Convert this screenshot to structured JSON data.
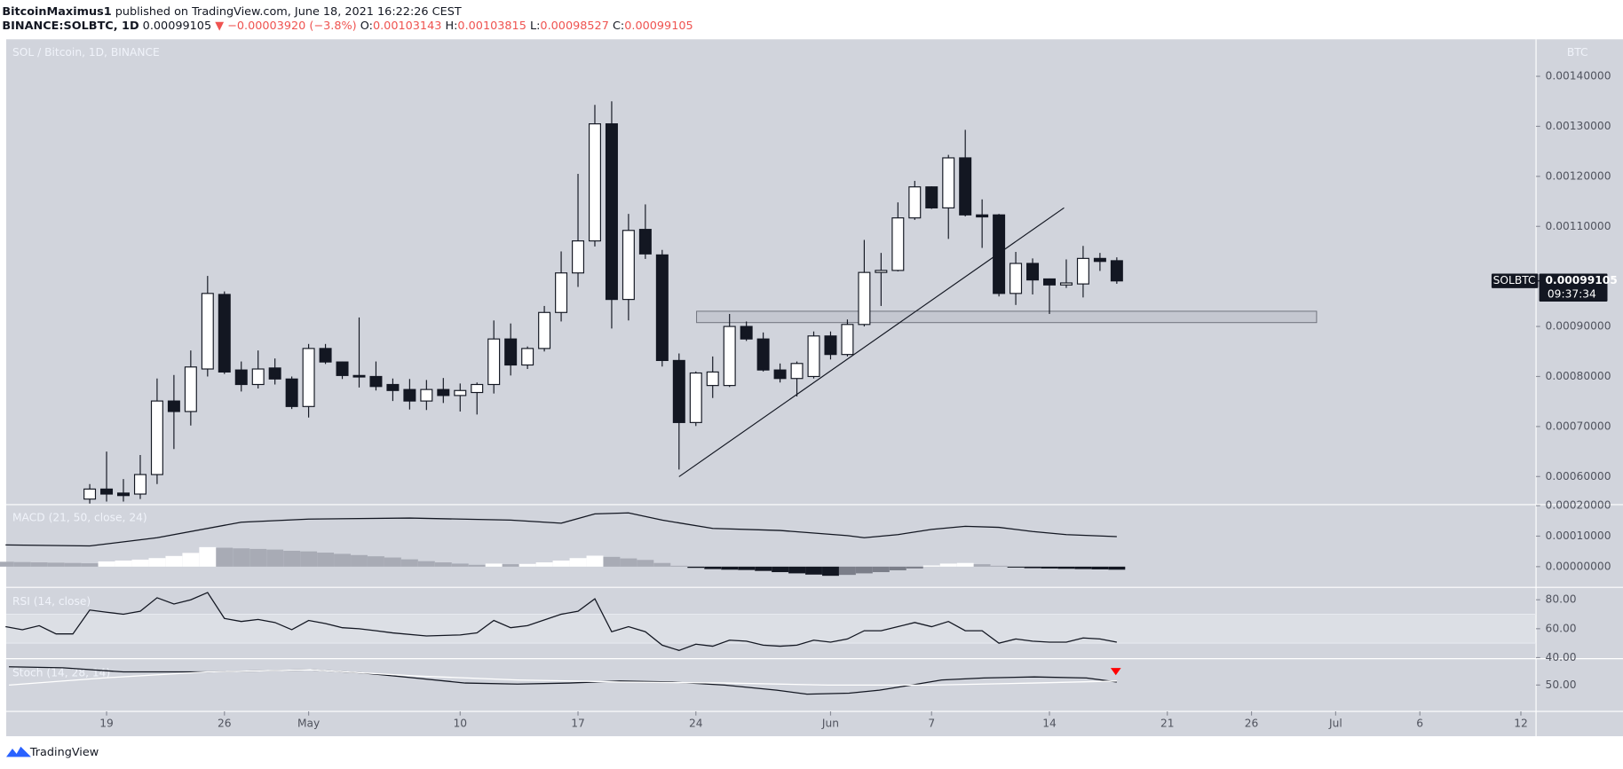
{
  "header": {
    "author": "BitcoinMaximus1",
    "published": "published on TradingView.com, June 18, 2021 16:22:26 CEST",
    "symbol": "BINANCE:SOLBTC, 1D",
    "last": "0.00099105",
    "change": "▼ −0.00003920 (−3.8%)",
    "ohlc": [
      {
        "label": "O:",
        "value": "0.00103143"
      },
      {
        "label": "H:",
        "value": "0.00103815"
      },
      {
        "label": "L:",
        "value": "0.00098527"
      },
      {
        "label": "C:",
        "value": "0.00099105"
      }
    ]
  },
  "price_tag": {
    "symbol": "SOLBTC",
    "price": "0.00099105",
    "countdown": "09:37:34"
  },
  "footer": {
    "brand": "TradingView"
  },
  "chart_data": [
    {
      "type": "candlestick",
      "title": "SOL / Bitcoin, 1D, BINANCE",
      "axis_label": "BTC",
      "up_color": "#ffffff",
      "down_color": "#131722",
      "xlim": [
        -5.96,
        84.9
      ],
      "xticks": [
        {
          "value": 0,
          "label": "19"
        },
        {
          "value": 7,
          "label": "26"
        },
        {
          "value": 12,
          "label": "May"
        },
        {
          "value": 21,
          "label": "10"
        },
        {
          "value": 28,
          "label": "17"
        },
        {
          "value": 35,
          "label": "24"
        },
        {
          "value": 43,
          "label": "Jun"
        },
        {
          "value": 49,
          "label": "7"
        },
        {
          "value": 56,
          "label": "14"
        },
        {
          "value": 63,
          "label": "21"
        },
        {
          "value": 68,
          "label": "26"
        },
        {
          "value": 73,
          "label": "Jul"
        },
        {
          "value": 78,
          "label": "6"
        },
        {
          "value": 84,
          "label": "12"
        }
      ],
      "ylim": [
        0.000546,
        0.001474
      ],
      "yticks": [
        {
          "value": 0.0006,
          "label": "0.00060000"
        },
        {
          "value": 0.0007,
          "label": "0.00070000"
        },
        {
          "value": 0.0008,
          "label": "0.00080000"
        },
        {
          "value": 0.0009,
          "label": "0.00090000"
        },
        {
          "value": 0.0011,
          "label": "0.00110000"
        },
        {
          "value": 0.0012,
          "label": "0.00120000"
        },
        {
          "value": 0.0013,
          "label": "0.00130000"
        },
        {
          "value": 0.0014,
          "label": "0.00140000"
        }
      ],
      "x": [
        -1,
        0,
        1,
        2,
        3,
        4,
        5,
        6,
        7,
        8,
        9,
        10,
        11,
        12,
        13,
        14,
        15,
        16,
        17,
        18,
        19,
        20,
        21,
        22,
        23,
        24,
        25,
        26,
        27,
        28,
        29,
        30,
        31,
        32,
        33,
        34,
        35,
        36,
        37,
        38,
        39,
        40,
        41,
        42,
        43,
        44,
        45,
        46,
        47,
        48,
        49,
        50,
        51,
        52,
        53,
        54,
        55,
        56,
        57,
        58,
        59,
        60
      ],
      "open": [
        0.000555,
        0.000575,
        0.000567,
        0.000565,
        0.000604,
        0.000751,
        0.00073,
        0.000815,
        0.000964,
        0.000813,
        0.000784,
        0.000817,
        0.000795,
        0.00074,
        0.000856,
        0.000829,
        0.000802,
        0.0008,
        0.000784,
        0.000774,
        0.000751,
        0.000774,
        0.000762,
        0.000768,
        0.000784,
        0.000875,
        0.000823,
        0.000856,
        0.000928,
        0.001007,
        0.001071,
        0.001305,
        0.000954,
        0.001094,
        0.001043,
        0.000832,
        0.000708,
        0.000782,
        0.000782,
        0.0009,
        0.000875,
        0.000813,
        0.000796,
        0.0008,
        0.000881,
        0.000844,
        0.000904,
        0.001008,
        0.001012,
        0.001117,
        0.001179,
        0.001137,
        0.001237,
        0.001123,
        0.001123,
        0.000966,
        0.001026,
        0.000995,
        0.000983,
        0.000985,
        0.001036,
        0.00103143
      ],
      "high": [
        0.000585,
        0.00065,
        0.000595,
        0.000643,
        0.000796,
        0.000803,
        0.000852,
        0.001001,
        0.00097,
        0.00083,
        0.000852,
        0.000836,
        0.0008,
        0.000865,
        0.000865,
        0.00083,
        0.000918,
        0.00083,
        0.000796,
        0.000795,
        0.000793,
        0.000797,
        0.000786,
        0.000788,
        0.000912,
        0.000906,
        0.00086,
        0.000941,
        0.00105,
        0.001205,
        0.001343,
        0.00135,
        0.001125,
        0.001144,
        0.001053,
        0.000846,
        0.00081,
        0.00084,
        0.000925,
        0.00091,
        0.000888,
        0.000826,
        0.00083,
        0.00089,
        0.00089,
        0.000914,
        0.001073,
        0.001047,
        0.001148,
        0.001191,
        0.00118,
        0.001243,
        0.001293,
        0.001154,
        0.001125,
        0.001049,
        0.001036,
        0.000996,
        0.001034,
        0.001061,
        0.001047,
        0.00103815
      ],
      "low": [
        0.00054,
        0.00055,
        0.00055,
        0.000555,
        0.000585,
        0.000655,
        0.000702,
        0.0008,
        0.000805,
        0.00077,
        0.000776,
        0.000784,
        0.000735,
        0.000718,
        0.000825,
        0.000795,
        0.000778,
        0.000772,
        0.000751,
        0.000734,
        0.000733,
        0.000747,
        0.00073,
        0.000724,
        0.000766,
        0.000802,
        0.000815,
        0.00085,
        0.00091,
        0.000979,
        0.00106,
        0.000896,
        0.000912,
        0.001035,
        0.00082,
        0.000614,
        0.000701,
        0.000757,
        0.000779,
        0.000871,
        0.00081,
        0.000788,
        0.00076,
        0.000796,
        0.000834,
        0.00084,
        0.0009,
        0.000941,
        0.00101,
        0.001113,
        0.001135,
        0.001075,
        0.00112,
        0.001057,
        0.00096,
        0.000943,
        0.000964,
        0.000925,
        0.000977,
        0.000958,
        0.001011,
        0.00098527
      ],
      "close": [
        0.000575,
        0.000565,
        0.000562,
        0.000604,
        0.000751,
        0.00073,
        0.000819,
        0.000966,
        0.000809,
        0.000784,
        0.000815,
        0.000795,
        0.00074,
        0.000856,
        0.000829,
        0.000802,
        0.000799,
        0.00078,
        0.000772,
        0.000751,
        0.000774,
        0.000762,
        0.000772,
        0.000784,
        0.000875,
        0.000823,
        0.000856,
        0.000928,
        0.001007,
        0.001071,
        0.001305,
        0.000954,
        0.001092,
        0.001045,
        0.000832,
        0.000708,
        0.000807,
        0.000809,
        0.0009,
        0.000875,
        0.000813,
        0.000796,
        0.000826,
        0.000881,
        0.000844,
        0.000904,
        0.001008,
        0.001012,
        0.001117,
        0.001179,
        0.001137,
        0.001237,
        0.001123,
        0.001119,
        0.000966,
        0.001026,
        0.000993,
        0.000983,
        0.000987,
        0.001036,
        0.00103,
        0.00099105
      ]
    },
    {
      "type": "macd",
      "title": "MACD (21, 50, close, 24)",
      "ylim": [
        -6.44e-05,
        0.0002
      ],
      "yticks": [
        {
          "value": 0,
          "label": "0.00000000"
        },
        {
          "value": 0.0001,
          "label": "0.00010000"
        },
        {
          "value": 0.0002,
          "label": "0.00020000"
        }
      ],
      "line": {
        "color": "#131722",
        "x": [
          -6,
          -1,
          3,
          8,
          12,
          18,
          24,
          27,
          29,
          31,
          33,
          36,
          40,
          44,
          45,
          47,
          49,
          51,
          53,
          55,
          57,
          60
        ],
        "values": [
          7.12e-05,
          6.78e-05,
          9.49e-05,
          0.0001458,
          0.0001559,
          0.0001593,
          0.0001525,
          0.0001424,
          0.0001729,
          0.0001763,
          0.0001525,
          0.0001254,
          0.0001186,
          0.0001017,
          9.49e-05,
          0.0001051,
          0.000122,
          0.0001322,
          0.0001288,
          0.0001153,
          0.0001051,
          9.83e-05
        ]
      },
      "histogram": {
        "colors": {
          "rising_positive": "#ffffff",
          "falling_positive": "#a8abb5",
          "rising_negative": "#7b7e89",
          "falling_negative": "#131722"
        },
        "x": [
          -6,
          -5,
          -4,
          -3,
          -2,
          -1,
          0,
          1,
          2,
          3,
          4,
          5,
          6,
          7,
          8,
          9,
          10,
          11,
          12,
          13,
          14,
          15,
          16,
          17,
          18,
          19,
          20,
          21,
          22,
          23,
          24,
          25,
          26,
          27,
          28,
          29,
          30,
          31,
          32,
          33,
          34,
          35,
          36,
          37,
          38,
          39,
          40,
          41,
          42,
          43,
          44,
          45,
          46,
          47,
          48,
          49,
          50,
          51,
          52,
          53,
          54,
          55,
          56,
          57,
          58,
          59,
          60
        ],
        "values": [
          1.6e-05,
          1.5e-05,
          1.4e-05,
          1.3e-05,
          1.2e-05,
          1.1e-05,
          1.7e-05,
          2e-05,
          2.3e-05,
          2.8e-05,
          3.5e-05,
          4.5e-05,
          6.4e-05,
          6.2e-05,
          6e-05,
          5.8e-05,
          5.6e-05,
          5.2e-05,
          5e-05,
          4.6e-05,
          4.2e-05,
          3.8e-05,
          3.4e-05,
          3e-05,
          2.4e-05,
          1.8e-05,
          1.4e-05,
          1e-05,
          6e-06,
          1e-05,
          8e-06,
          9e-06,
          1.4e-05,
          2e-05,
          2.8e-05,
          3.6e-05,
          3.2e-05,
          2.7e-05,
          2.2e-05,
          1.2e-05,
          3e-06,
          -4e-06,
          -8e-06,
          -1e-05,
          -1.1e-05,
          -1.4e-05,
          -1.8e-05,
          -2.2e-05,
          -2.6e-05,
          -3e-05,
          -2.7e-05,
          -2.2e-05,
          -1.8e-05,
          -1.2e-05,
          -6e-06,
          4e-06,
          1e-05,
          1.2e-05,
          8e-06,
          3e-06,
          -3e-06,
          -5e-06,
          -6e-06,
          -7e-06,
          -8e-06,
          -9e-06,
          -1e-05
        ]
      }
    },
    {
      "type": "line",
      "title": "RSI (14, close)",
      "color": "#131722",
      "ylim": [
        40,
        87.9
      ],
      "yticks": [
        {
          "value": 40,
          "label": "40.00"
        },
        {
          "value": 60,
          "label": "60.00"
        },
        {
          "value": 80,
          "label": "80.00"
        }
      ],
      "band": [
        50,
        70
      ],
      "x": [
        -6,
        -5,
        -4,
        -3,
        -2,
        -1,
        0,
        1,
        2,
        3,
        4,
        5,
        6,
        7,
        8,
        9,
        10,
        11,
        12,
        13,
        14,
        15,
        16,
        17,
        19,
        21,
        22,
        23,
        24,
        25,
        27,
        28,
        29,
        30,
        31,
        32,
        33,
        34,
        35,
        36,
        37,
        38,
        39,
        40,
        41,
        42,
        43,
        44,
        45,
        46,
        47,
        48,
        49,
        50,
        51,
        52,
        53,
        54,
        55,
        56,
        57,
        58,
        59,
        60
      ],
      "values": [
        61.4,
        59.3,
        62.1,
        56.4,
        56.4,
        72.9,
        71.4,
        70,
        72.1,
        81.4,
        77.1,
        80,
        85,
        67.1,
        65,
        66.4,
        64.3,
        59.3,
        65.7,
        63.6,
        60.7,
        60,
        58.6,
        57.1,
        55,
        55.7,
        57.1,
        65.7,
        60.7,
        62.1,
        70,
        72.1,
        80.7,
        57.9,
        61.4,
        57.9,
        48.6,
        45,
        49.3,
        47.9,
        52.1,
        51.4,
        48.6,
        47.9,
        48.6,
        52.1,
        50.7,
        52.9,
        58.6,
        58.6,
        61.4,
        64.3,
        61.4,
        65,
        58.6,
        58.6,
        50,
        52.9,
        51.4,
        50.7,
        50.7,
        53.6,
        52.9,
        50.7
      ]
    },
    {
      "type": "stoch",
      "title": "Stoch (14, 28, 14)",
      "ylim": [
        22.2,
        77.8
      ],
      "yticks": [
        {
          "value": 50,
          "label": "50.00"
        }
      ],
      "series": [
        {
          "color": "#131722",
          "x": [
            -5.8,
            -2.6,
            1,
            6,
            12.1,
            15.2,
            18.3,
            21.3,
            24.4,
            27.5,
            30.5,
            33.6,
            36.7,
            39.8,
            41.6,
            44.1,
            45.9,
            47.8,
            49.6,
            52.1,
            55.1,
            58.2,
            60
          ],
          "values": [
            70,
            68.9,
            64.4,
            64.4,
            66.7,
            63.3,
            57.8,
            52.2,
            51.1,
            52.2,
            54.4,
            53.3,
            50,
            44.4,
            40,
            41.1,
            44.4,
            50,
            55.6,
            57.8,
            58.9,
            57.8,
            53.3
          ]
        },
        {
          "color": "#ffffff",
          "x": [
            -5.8,
            -0.2,
            6,
            12.1,
            18.3,
            24.4,
            30.5,
            36.7,
            42.8,
            49,
            55.1,
            60
          ],
          "values": [
            50,
            57.8,
            64.4,
            66.7,
            60,
            55.6,
            53.3,
            52.2,
            50,
            50,
            52.2,
            54.4
          ]
        }
      ]
    }
  ]
}
